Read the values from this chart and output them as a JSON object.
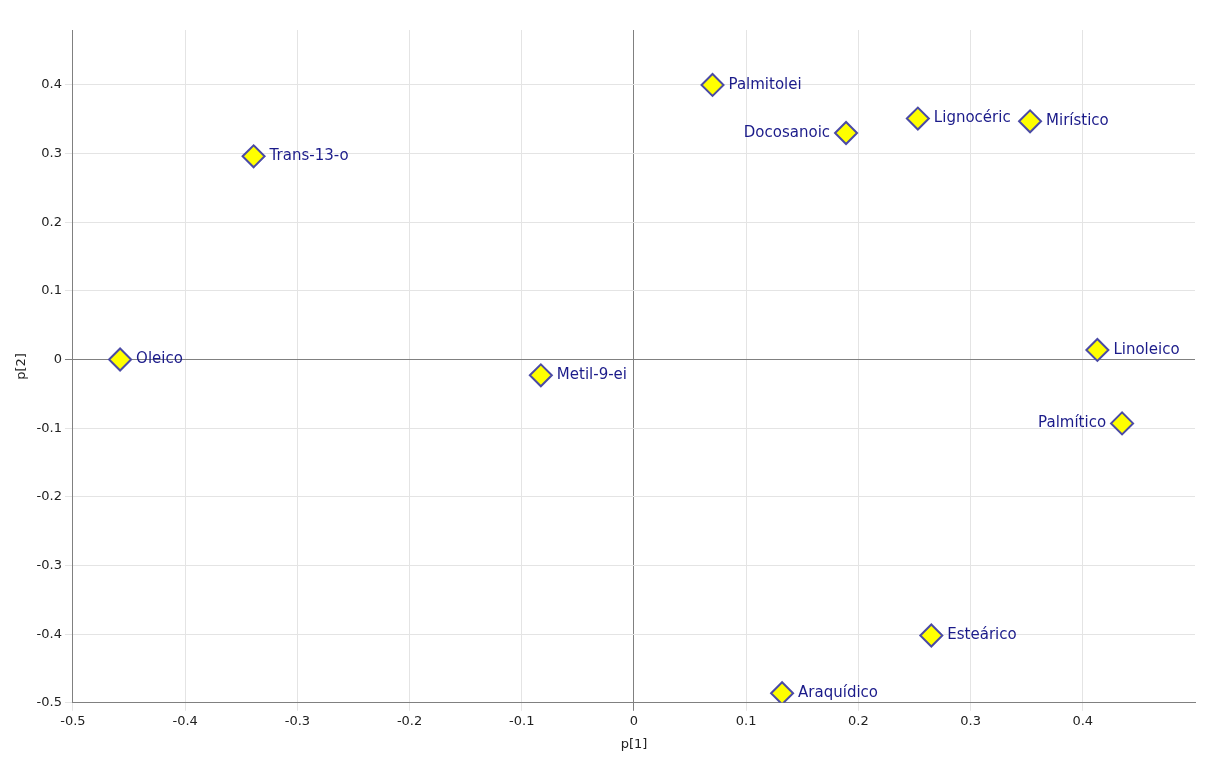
{
  "chart_data": {
    "type": "scatter",
    "xlabel": "p[1]",
    "ylabel": "p[2]",
    "xlim": [
      -0.5,
      0.5
    ],
    "ylim": [
      -0.5,
      0.48
    ],
    "xticks": [
      -0.5,
      -0.4,
      -0.3,
      -0.2,
      -0.1,
      0,
      0.1,
      0.2,
      0.3,
      0.4
    ],
    "yticks": [
      -0.5,
      -0.4,
      -0.3,
      -0.2,
      -0.1,
      0,
      0.1,
      0.2,
      0.3,
      0.4
    ],
    "grid": true,
    "legend": false,
    "marker": "diamond",
    "series": [
      {
        "name": "Oleico",
        "color": "#ffff00",
        "x": [
          -0.458
        ],
        "values": [
          0.0
        ]
      },
      {
        "name": "Trans-13-o",
        "color": "#ffff00",
        "x": [
          -0.339
        ],
        "values": [
          0.296
        ]
      },
      {
        "name": "Metil-9-ei",
        "color": "#ffff00",
        "x": [
          -0.083
        ],
        "values": [
          -0.023
        ]
      },
      {
        "name": "Palmitolei",
        "color": "#ffff00",
        "x": [
          0.07
        ],
        "values": [
          0.4
        ]
      },
      {
        "name": "Docosanoic",
        "color": "#ffff00",
        "x": [
          0.189
        ],
        "values": [
          0.33
        ]
      },
      {
        "name": "Lignocéric",
        "color": "#ffff00",
        "x": [
          0.253
        ],
        "values": [
          0.351
        ]
      },
      {
        "name": "Mirístico",
        "color": "#ffff00",
        "x": [
          0.353
        ],
        "values": [
          0.347
        ]
      },
      {
        "name": "Linoleico",
        "color": "#ffff00",
        "x": [
          0.413
        ],
        "values": [
          0.014
        ]
      },
      {
        "name": "Palmítico",
        "color": "#ffff00",
        "x": [
          0.435
        ],
        "values": [
          -0.093
        ]
      },
      {
        "name": "Esteárico",
        "color": "#ffff00",
        "x": [
          0.265
        ],
        "values": [
          -0.402
        ]
      },
      {
        "name": "Araquídico",
        "color": "#ffff00",
        "x": [
          0.132
        ],
        "values": [
          -0.486
        ]
      }
    ]
  }
}
